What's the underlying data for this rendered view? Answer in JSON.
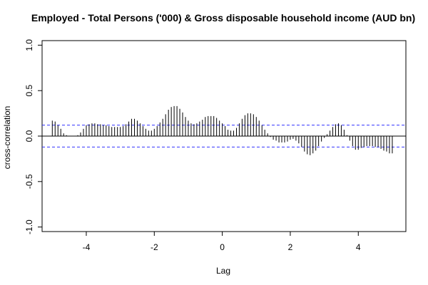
{
  "chart_data": {
    "type": "bar",
    "title": "Employed - Total Persons ('000) & Gross disposable household income (AUD bn)",
    "xlabel": "Lag",
    "ylabel": "cross-correlation",
    "xlim": [
      -5.3,
      5.4
    ],
    "ylim": [
      -1.05,
      1.05
    ],
    "x_ticks": [
      -4,
      -2,
      0,
      2,
      4
    ],
    "x_tick_labels": [
      "-4",
      "-2",
      "0",
      "2",
      "4"
    ],
    "y_ticks": [
      -1.0,
      -0.5,
      0.0,
      0.5,
      1.0
    ],
    "y_tick_labels": [
      "-1.0",
      "-0.5",
      "0.0",
      "0.5",
      "1.0"
    ],
    "confidence_bound": 0.12,
    "grid": false,
    "colors": {
      "bars": "#000000",
      "zero_line": "#000000",
      "confidence": "#3333ff",
      "frame": "#000000"
    },
    "lags": [
      -5.0,
      -4.917,
      -4.833,
      -4.75,
      -4.667,
      -4.583,
      -4.5,
      -4.417,
      -4.333,
      -4.25,
      -4.167,
      -4.083,
      -4.0,
      -3.917,
      -3.833,
      -3.75,
      -3.667,
      -3.583,
      -3.5,
      -3.417,
      -3.333,
      -3.25,
      -3.167,
      -3.083,
      -3.0,
      -2.917,
      -2.833,
      -2.75,
      -2.667,
      -2.583,
      -2.5,
      -2.417,
      -2.333,
      -2.25,
      -2.167,
      -2.083,
      -2.0,
      -1.917,
      -1.833,
      -1.75,
      -1.667,
      -1.583,
      -1.5,
      -1.417,
      -1.333,
      -1.25,
      -1.167,
      -1.083,
      -1.0,
      -0.917,
      -0.833,
      -0.75,
      -0.667,
      -0.583,
      -0.5,
      -0.417,
      -0.333,
      -0.25,
      -0.167,
      -0.083,
      0.0,
      0.083,
      0.167,
      0.25,
      0.333,
      0.417,
      0.5,
      0.583,
      0.667,
      0.75,
      0.833,
      0.917,
      1.0,
      1.083,
      1.167,
      1.25,
      1.333,
      1.417,
      1.5,
      1.583,
      1.667,
      1.75,
      1.833,
      1.917,
      2.0,
      2.083,
      2.167,
      2.25,
      2.333,
      2.417,
      2.5,
      2.583,
      2.667,
      2.75,
      2.833,
      2.917,
      3.0,
      3.083,
      3.167,
      3.25,
      3.333,
      3.417,
      3.5,
      3.583,
      3.667,
      3.75,
      3.833,
      3.917,
      4.0,
      4.083,
      4.167,
      4.25,
      4.333,
      4.417,
      4.5,
      4.583,
      4.667,
      4.75,
      4.833,
      4.917,
      5.0
    ],
    "values": [
      0.17,
      0.16,
      0.12,
      0.08,
      0.03,
      0.01,
      0.0,
      0.0,
      0.0,
      0.01,
      0.04,
      0.08,
      0.12,
      0.13,
      0.14,
      0.14,
      0.13,
      0.13,
      0.12,
      0.12,
      0.11,
      0.1,
      0.1,
      0.1,
      0.1,
      0.11,
      0.13,
      0.16,
      0.19,
      0.19,
      0.17,
      0.14,
      0.11,
      0.08,
      0.06,
      0.06,
      0.08,
      0.11,
      0.15,
      0.19,
      0.24,
      0.29,
      0.32,
      0.33,
      0.33,
      0.3,
      0.26,
      0.21,
      0.17,
      0.14,
      0.13,
      0.14,
      0.16,
      0.18,
      0.21,
      0.22,
      0.22,
      0.22,
      0.2,
      0.17,
      0.14,
      0.11,
      0.07,
      0.06,
      0.06,
      0.09,
      0.14,
      0.19,
      0.23,
      0.25,
      0.25,
      0.24,
      0.21,
      0.17,
      0.12,
      0.07,
      0.03,
      -0.01,
      -0.04,
      -0.05,
      -0.07,
      -0.07,
      -0.07,
      -0.06,
      -0.04,
      -0.03,
      -0.05,
      -0.08,
      -0.12,
      -0.17,
      -0.2,
      -0.21,
      -0.19,
      -0.16,
      -0.11,
      -0.06,
      -0.02,
      0.02,
      0.06,
      0.1,
      0.13,
      0.14,
      0.12,
      0.07,
      0.01,
      -0.05,
      -0.11,
      -0.15,
      -0.15,
      -0.13,
      -0.12,
      -0.11,
      -0.11,
      -0.11,
      -0.12,
      -0.12,
      -0.14,
      -0.16,
      -0.17,
      -0.19,
      -0.19
    ]
  }
}
